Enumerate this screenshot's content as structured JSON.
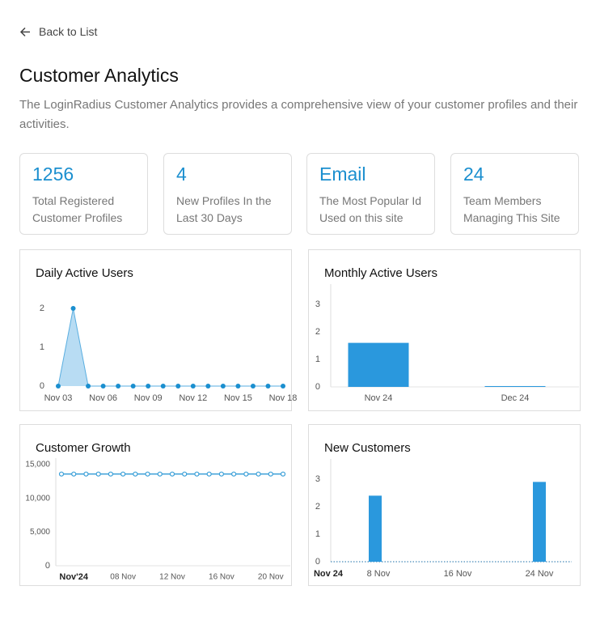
{
  "back_link": "Back to List",
  "header": {
    "title": "Customer Analytics",
    "description": "The LoginRadius Customer Analytics provides a comprehensive view of your customer profiles and their activities."
  },
  "stats": [
    {
      "value": 1256,
      "label": "Total Registered Customer Profiles"
    },
    {
      "value": 4,
      "label": "New Profiles In the Last 30 Days"
    },
    {
      "value": "Email",
      "label": "The Most Popular Id Used on this site"
    },
    {
      "value": 24,
      "label": "Team Members Managing This Site"
    }
  ],
  "chart_data": [
    {
      "type": "area",
      "title": "Daily Active Users",
      "color": "#1b8fcf",
      "categories": [
        "Nov 03",
        null,
        null,
        "Nov 06",
        null,
        null,
        "Nov 09",
        null,
        null,
        "Nov 12",
        null,
        null,
        "Nov 15",
        null,
        null,
        "Nov 18"
      ],
      "values": [
        0,
        2,
        0,
        0,
        0,
        0,
        0,
        0,
        0,
        0,
        0,
        0,
        0,
        0,
        0,
        0
      ],
      "ylim": [
        0,
        2
      ],
      "yticks": [
        0,
        1,
        2
      ]
    },
    {
      "type": "bar",
      "title": "Monthly Active Users",
      "color": "#2a98dd",
      "categories": [
        "Nov 24",
        "Dec 24"
      ],
      "values": [
        1.6,
        0.03
      ],
      "ylim": [
        0,
        3.5
      ],
      "yticks": [
        0,
        1,
        2,
        3
      ]
    },
    {
      "type": "line",
      "title": "Customer Growth",
      "color": "#3a9fd8",
      "categories": [
        null,
        "Nov'24",
        null,
        null,
        null,
        "08 Nov",
        null,
        null,
        null,
        "12 Nov",
        null,
        null,
        null,
        "16 Nov",
        null,
        null,
        null,
        "20 Nov",
        null
      ],
      "values": [
        13600,
        13600,
        13600,
        13600,
        13600,
        13600,
        13600,
        13600,
        13600,
        13600,
        13600,
        13600,
        13600,
        13600,
        13600,
        13600,
        13600,
        13600,
        13600
      ],
      "ylim": [
        0,
        15000
      ],
      "yticks": [
        0,
        {
          "value": 5000,
          "label": "5,000"
        },
        {
          "value": 10000,
          "label": "10,000"
        },
        {
          "value": 15000,
          "label": "15,000"
        }
      ]
    },
    {
      "type": "bar",
      "title": "New Customers",
      "color": "#2a98dd",
      "categories": [
        "Nov 24",
        "8 Nov",
        "16 Nov",
        "24 Nov"
      ],
      "values": [
        0,
        2.4,
        0,
        2.9
      ],
      "ylim": [
        0,
        3.5
      ],
      "yticks": [
        0,
        1,
        2,
        3
      ]
    }
  ]
}
